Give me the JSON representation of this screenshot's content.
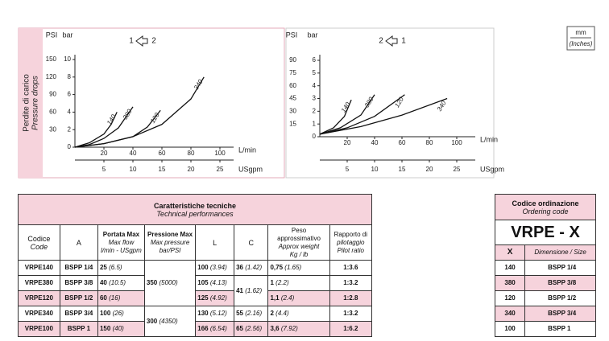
{
  "chart_data": [
    {
      "type": "line",
      "title": "Perdite di carico",
      "subtitle": "Pressure drops",
      "annotations": [
        "1",
        "2"
      ],
      "ylabel": "bar",
      "y2label": "PSI",
      "xlabel": "L/min",
      "x2label": "USgpm",
      "xlim": [
        0,
        100
      ],
      "xticks": [
        20,
        40,
        60,
        80,
        100
      ],
      "x2lim": [
        0,
        25
      ],
      "x2ticks": [
        5,
        10,
        15,
        20,
        25
      ],
      "ylim": [
        0,
        10
      ],
      "yticks": [
        0,
        2,
        4,
        6,
        8,
        10
      ],
      "y2lim": [
        0,
        150
      ],
      "y2ticks": [
        30,
        60,
        90,
        120,
        150
      ],
      "series": [
        {
          "name": "140",
          "color": "#111111",
          "x": [
            0,
            10,
            20,
            25,
            29
          ],
          "values": [
            0,
            0.5,
            1.5,
            2.6,
            4
          ]
        },
        {
          "name": "380",
          "color": "#111111",
          "x": [
            0,
            10,
            20,
            30,
            40
          ],
          "values": [
            0,
            0.3,
            1,
            2.2,
            4.6
          ]
        },
        {
          "name": "120",
          "color": "#111111",
          "x": [
            0,
            20,
            40,
            50,
            59
          ],
          "values": [
            0,
            0.4,
            1.2,
            2.3,
            4.2
          ]
        },
        {
          "name": "340",
          "color": "#111111",
          "x": [
            0,
            20,
            40,
            60,
            80,
            89
          ],
          "values": [
            0,
            0.4,
            1.2,
            2.6,
            5.5,
            8
          ]
        }
      ]
    },
    {
      "type": "line",
      "annotations": [
        "2",
        "1"
      ],
      "ylabel": "bar",
      "y2label": "PSI",
      "xlabel": "L/min",
      "x2label": "USgpm",
      "xlim": [
        0,
        100
      ],
      "xticks": [
        20,
        40,
        60,
        80,
        100
      ],
      "x2lim": [
        0,
        25
      ],
      "x2ticks": [
        5,
        10,
        15,
        20,
        25
      ],
      "ylim": [
        0,
        6
      ],
      "yticks": [
        0,
        1,
        2,
        3,
        4,
        5,
        6
      ],
      "y2lim": [
        0,
        90
      ],
      "y2ticks": [
        15,
        30,
        45,
        60,
        75,
        90
      ],
      "series": [
        {
          "name": "140",
          "color": "#111111",
          "x": [
            0,
            10,
            18,
            23
          ],
          "values": [
            0.2,
            0.7,
            1.6,
            2.9
          ]
        },
        {
          "name": "380",
          "color": "#111111",
          "x": [
            0,
            15,
            30,
            40
          ],
          "values": [
            0.2,
            0.7,
            1.7,
            3.3
          ]
        },
        {
          "name": "120",
          "color": "#111111",
          "x": [
            0,
            20,
            40,
            62
          ],
          "values": [
            0.2,
            0.7,
            1.6,
            3.3
          ]
        },
        {
          "name": "340",
          "color": "#111111",
          "x": [
            0,
            30,
            60,
            93
          ],
          "values": [
            0.2,
            0.8,
            1.7,
            3
          ]
        }
      ]
    }
  ],
  "units": {
    "top": "mm",
    "bottom": "(Inches)"
  },
  "performance_table": {
    "title": "Caratteristiche tecniche",
    "subtitle": "Technical performances",
    "headers": [
      [
        "Codice",
        "Code"
      ],
      [
        "A"
      ],
      [
        "Portata Max",
        "Max flow",
        "l/min - USgpm"
      ],
      [
        "Pressione Max",
        "Max pressure",
        "bar/PSI"
      ],
      [
        "L"
      ],
      [
        "C"
      ],
      [
        "Peso approssimativo",
        "Approx weight",
        "Kg / lb"
      ],
      [
        "Rapporto di",
        "pilotaggio",
        "Pilot ratio"
      ]
    ],
    "rows": [
      [
        "VRPE140",
        "BSPP 1/4",
        [
          "25",
          "(6.5)"
        ],
        [
          "350",
          "(5000)"
        ],
        [
          "100",
          "(3.94)"
        ],
        [
          "36",
          "(1.42)"
        ],
        [
          "0,75",
          "(1.65)"
        ],
        "1:3.6"
      ],
      [
        "VRPE380",
        "BSPP 3/8",
        [
          "40",
          "(10.5)"
        ],
        [
          "105",
          "(4.13)"
        ],
        [
          "41",
          "(1.62)"
        ],
        [
          "1",
          "(2.2)"
        ],
        "1:3.2"
      ],
      [
        "VRPE120",
        "BSPP 1/2",
        [
          "60",
          "(16)"
        ],
        [
          "125",
          "(4.92)"
        ],
        [
          "1,1",
          "(2.4)"
        ],
        "1:2.8"
      ],
      [
        "VRPE340",
        "BSPP 3/4",
        [
          "100",
          "(26)"
        ],
        [
          "300",
          "(4350)"
        ],
        [
          "130",
          "(5.12)"
        ],
        [
          "55",
          "(2.16)"
        ],
        [
          "2",
          "(4.4)"
        ],
        "1:3.2"
      ],
      [
        "VRPE100",
        "BSPP 1",
        [
          "150",
          "(40)"
        ],
        [
          "166",
          "(6.54)"
        ],
        [
          "65",
          "(2.56)"
        ],
        [
          "3,6",
          "(7.92)"
        ],
        "1:6.2"
      ]
    ]
  },
  "ordering_table": {
    "title": "Codice ordinazione",
    "subtitle": "Ordering code",
    "code": "VRPE - X",
    "headers": [
      "X",
      "Dimensione / Size"
    ],
    "rows": [
      [
        "140",
        "BSPP 1/4"
      ],
      [
        "380",
        "BSPP 3/8"
      ],
      [
        "120",
        "BSPP 1/2"
      ],
      [
        "340",
        "BSPP 3/4"
      ],
      [
        "100",
        "BSPP 1"
      ]
    ]
  }
}
